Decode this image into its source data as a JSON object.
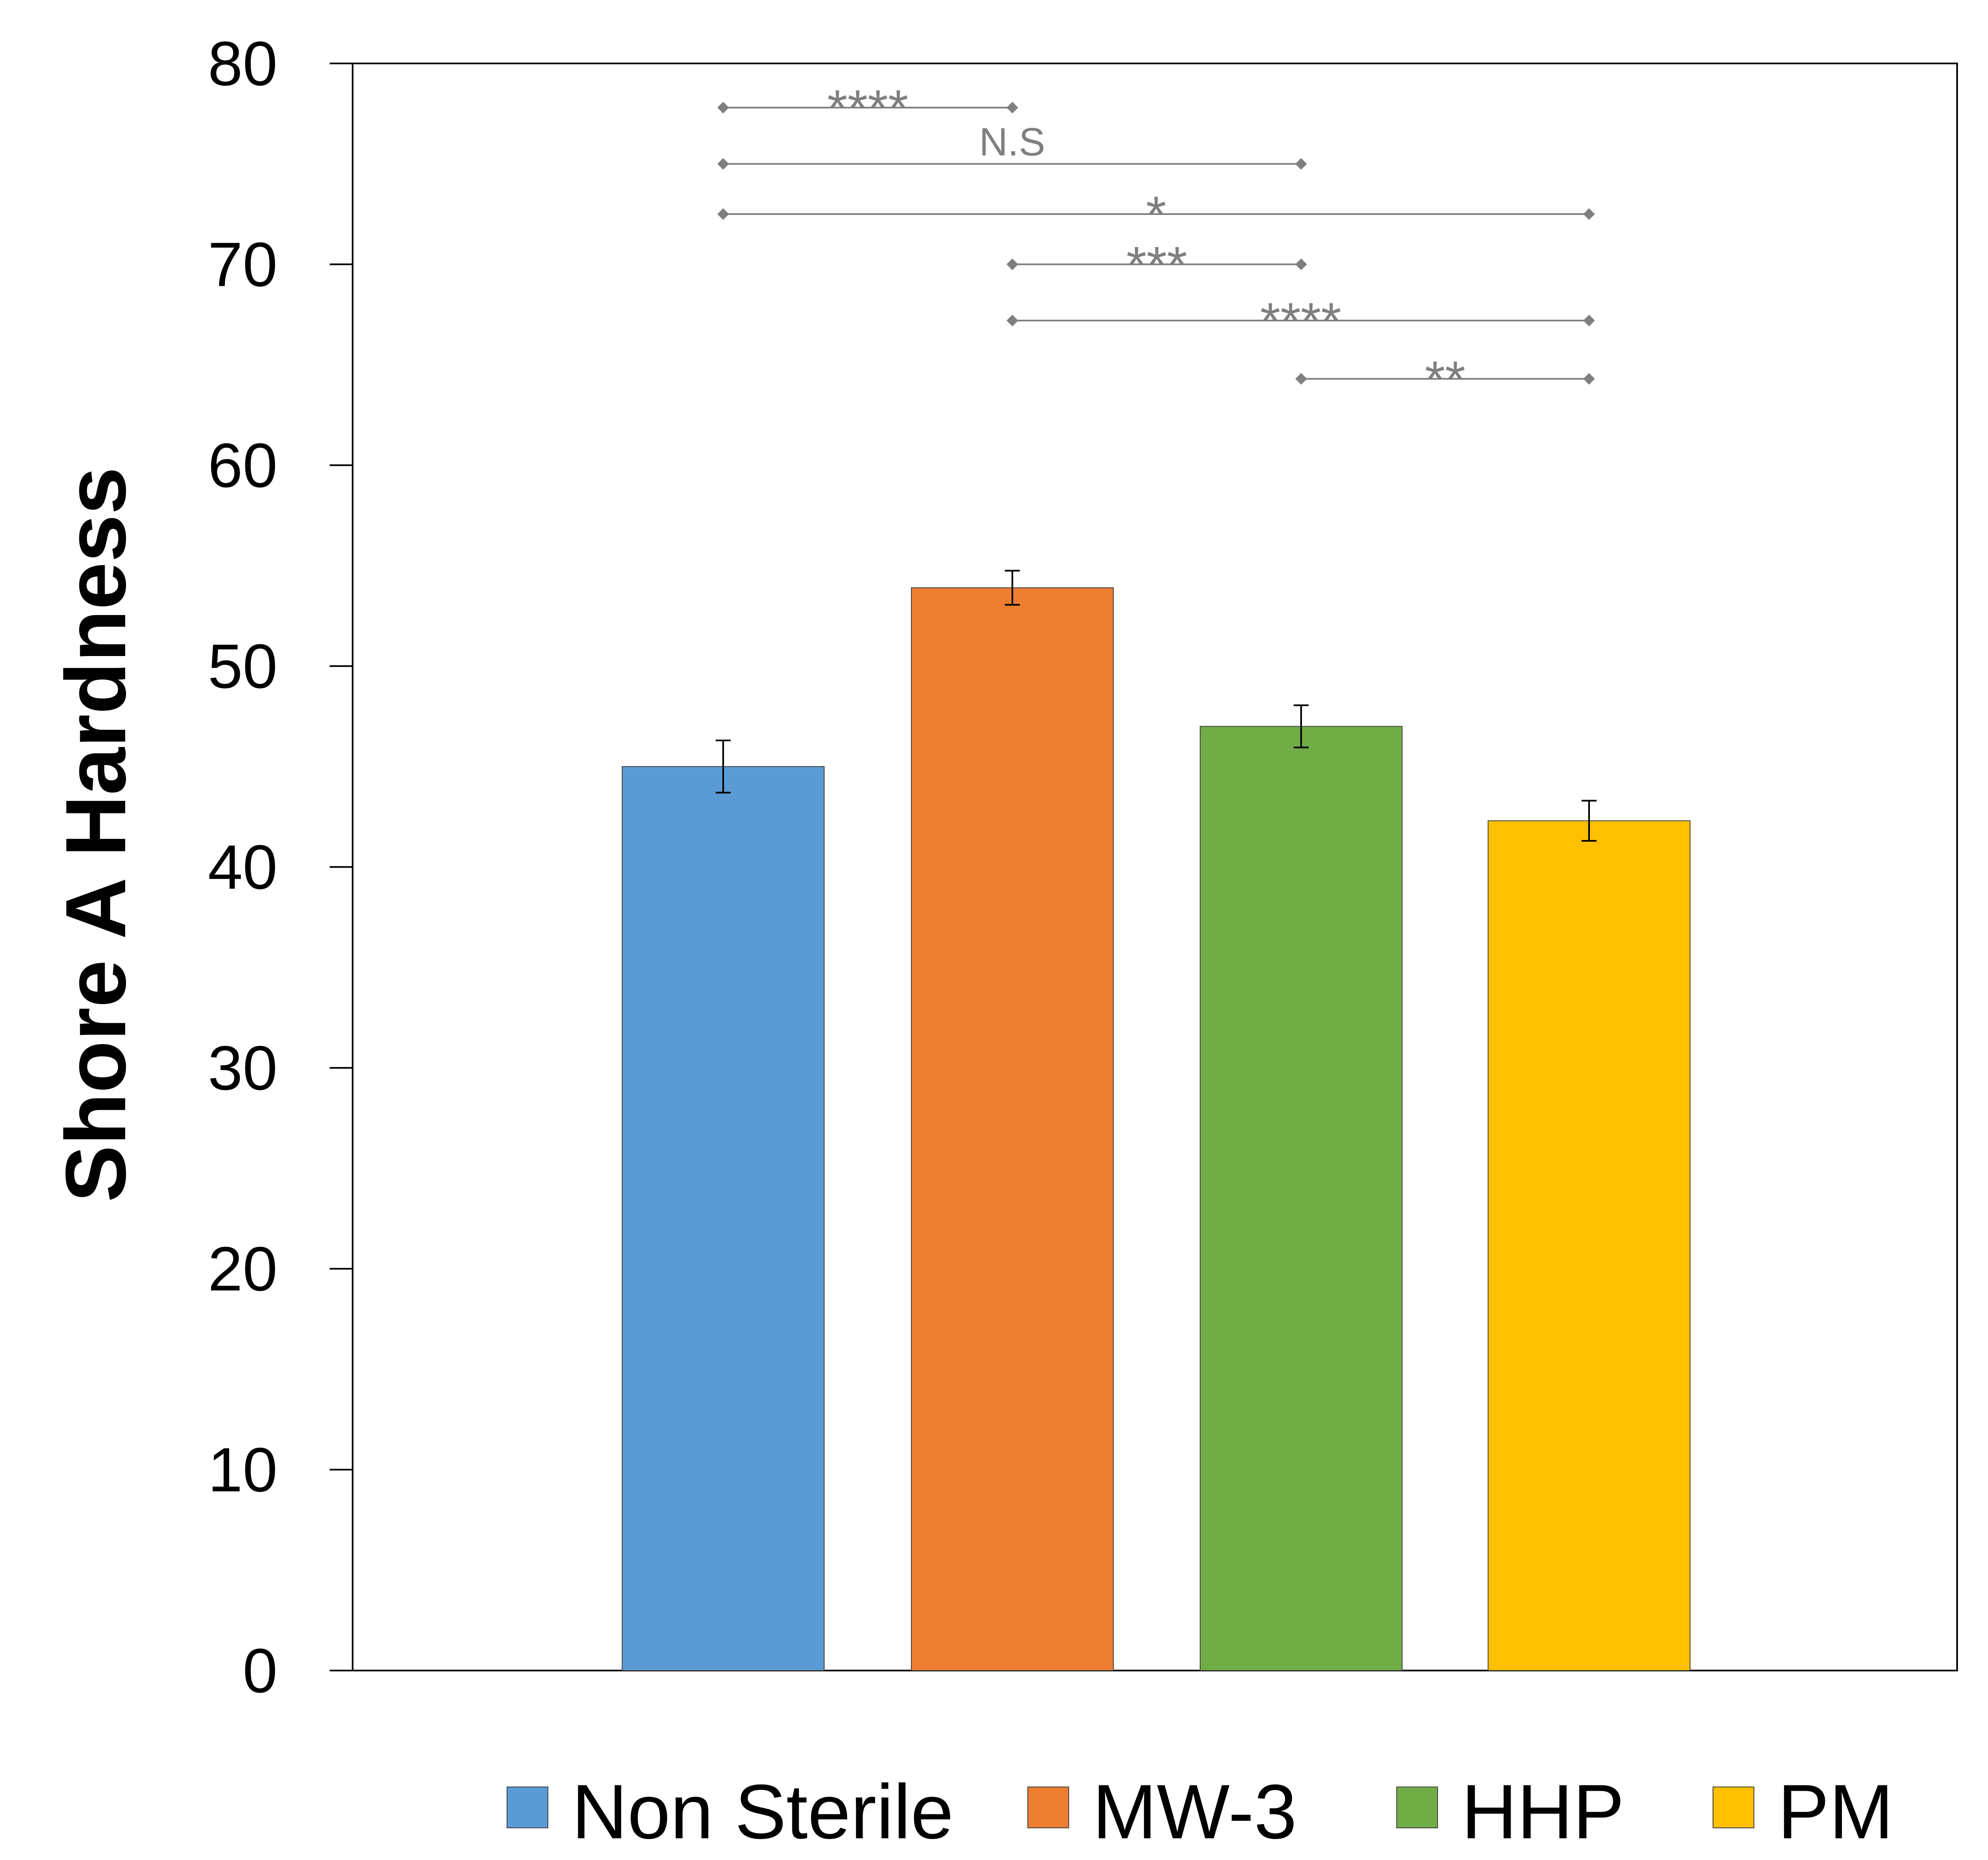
{
  "chart_data": {
    "type": "bar",
    "title": "",
    "xlabel": "",
    "ylabel": "Shore A Hardness",
    "ylim": [
      0,
      80
    ],
    "yticks": [
      0,
      10,
      20,
      30,
      40,
      50,
      60,
      70,
      80
    ],
    "ytick_labels": [
      "0",
      "10",
      "20",
      "30",
      "40",
      "50",
      "60",
      "70",
      "80"
    ],
    "grid": false,
    "legend_position": "bottom",
    "categories": [
      "Non Sterile",
      "MW-3",
      "HHP",
      "PM"
    ],
    "values": [
      45.0,
      53.9,
      47.0,
      42.3
    ],
    "errors": [
      1.3,
      0.85,
      1.05,
      1.0
    ],
    "colors": [
      "#5b9bd5",
      "#ed7d31",
      "#70ad47",
      "#ffc000"
    ],
    "significance": [
      {
        "from": 0,
        "to": 1,
        "y": 77.8,
        "label": "****"
      },
      {
        "from": 0,
        "to": 2,
        "y": 75.0,
        "label": "N.S"
      },
      {
        "from": 0,
        "to": 3,
        "y": 72.5,
        "label": "*"
      },
      {
        "from": 1,
        "to": 2,
        "y": 70.0,
        "label": "***"
      },
      {
        "from": 1,
        "to": 3,
        "y": 67.2,
        "label": "****"
      },
      {
        "from": 2,
        "to": 3,
        "y": 64.3,
        "label": "**"
      }
    ]
  }
}
